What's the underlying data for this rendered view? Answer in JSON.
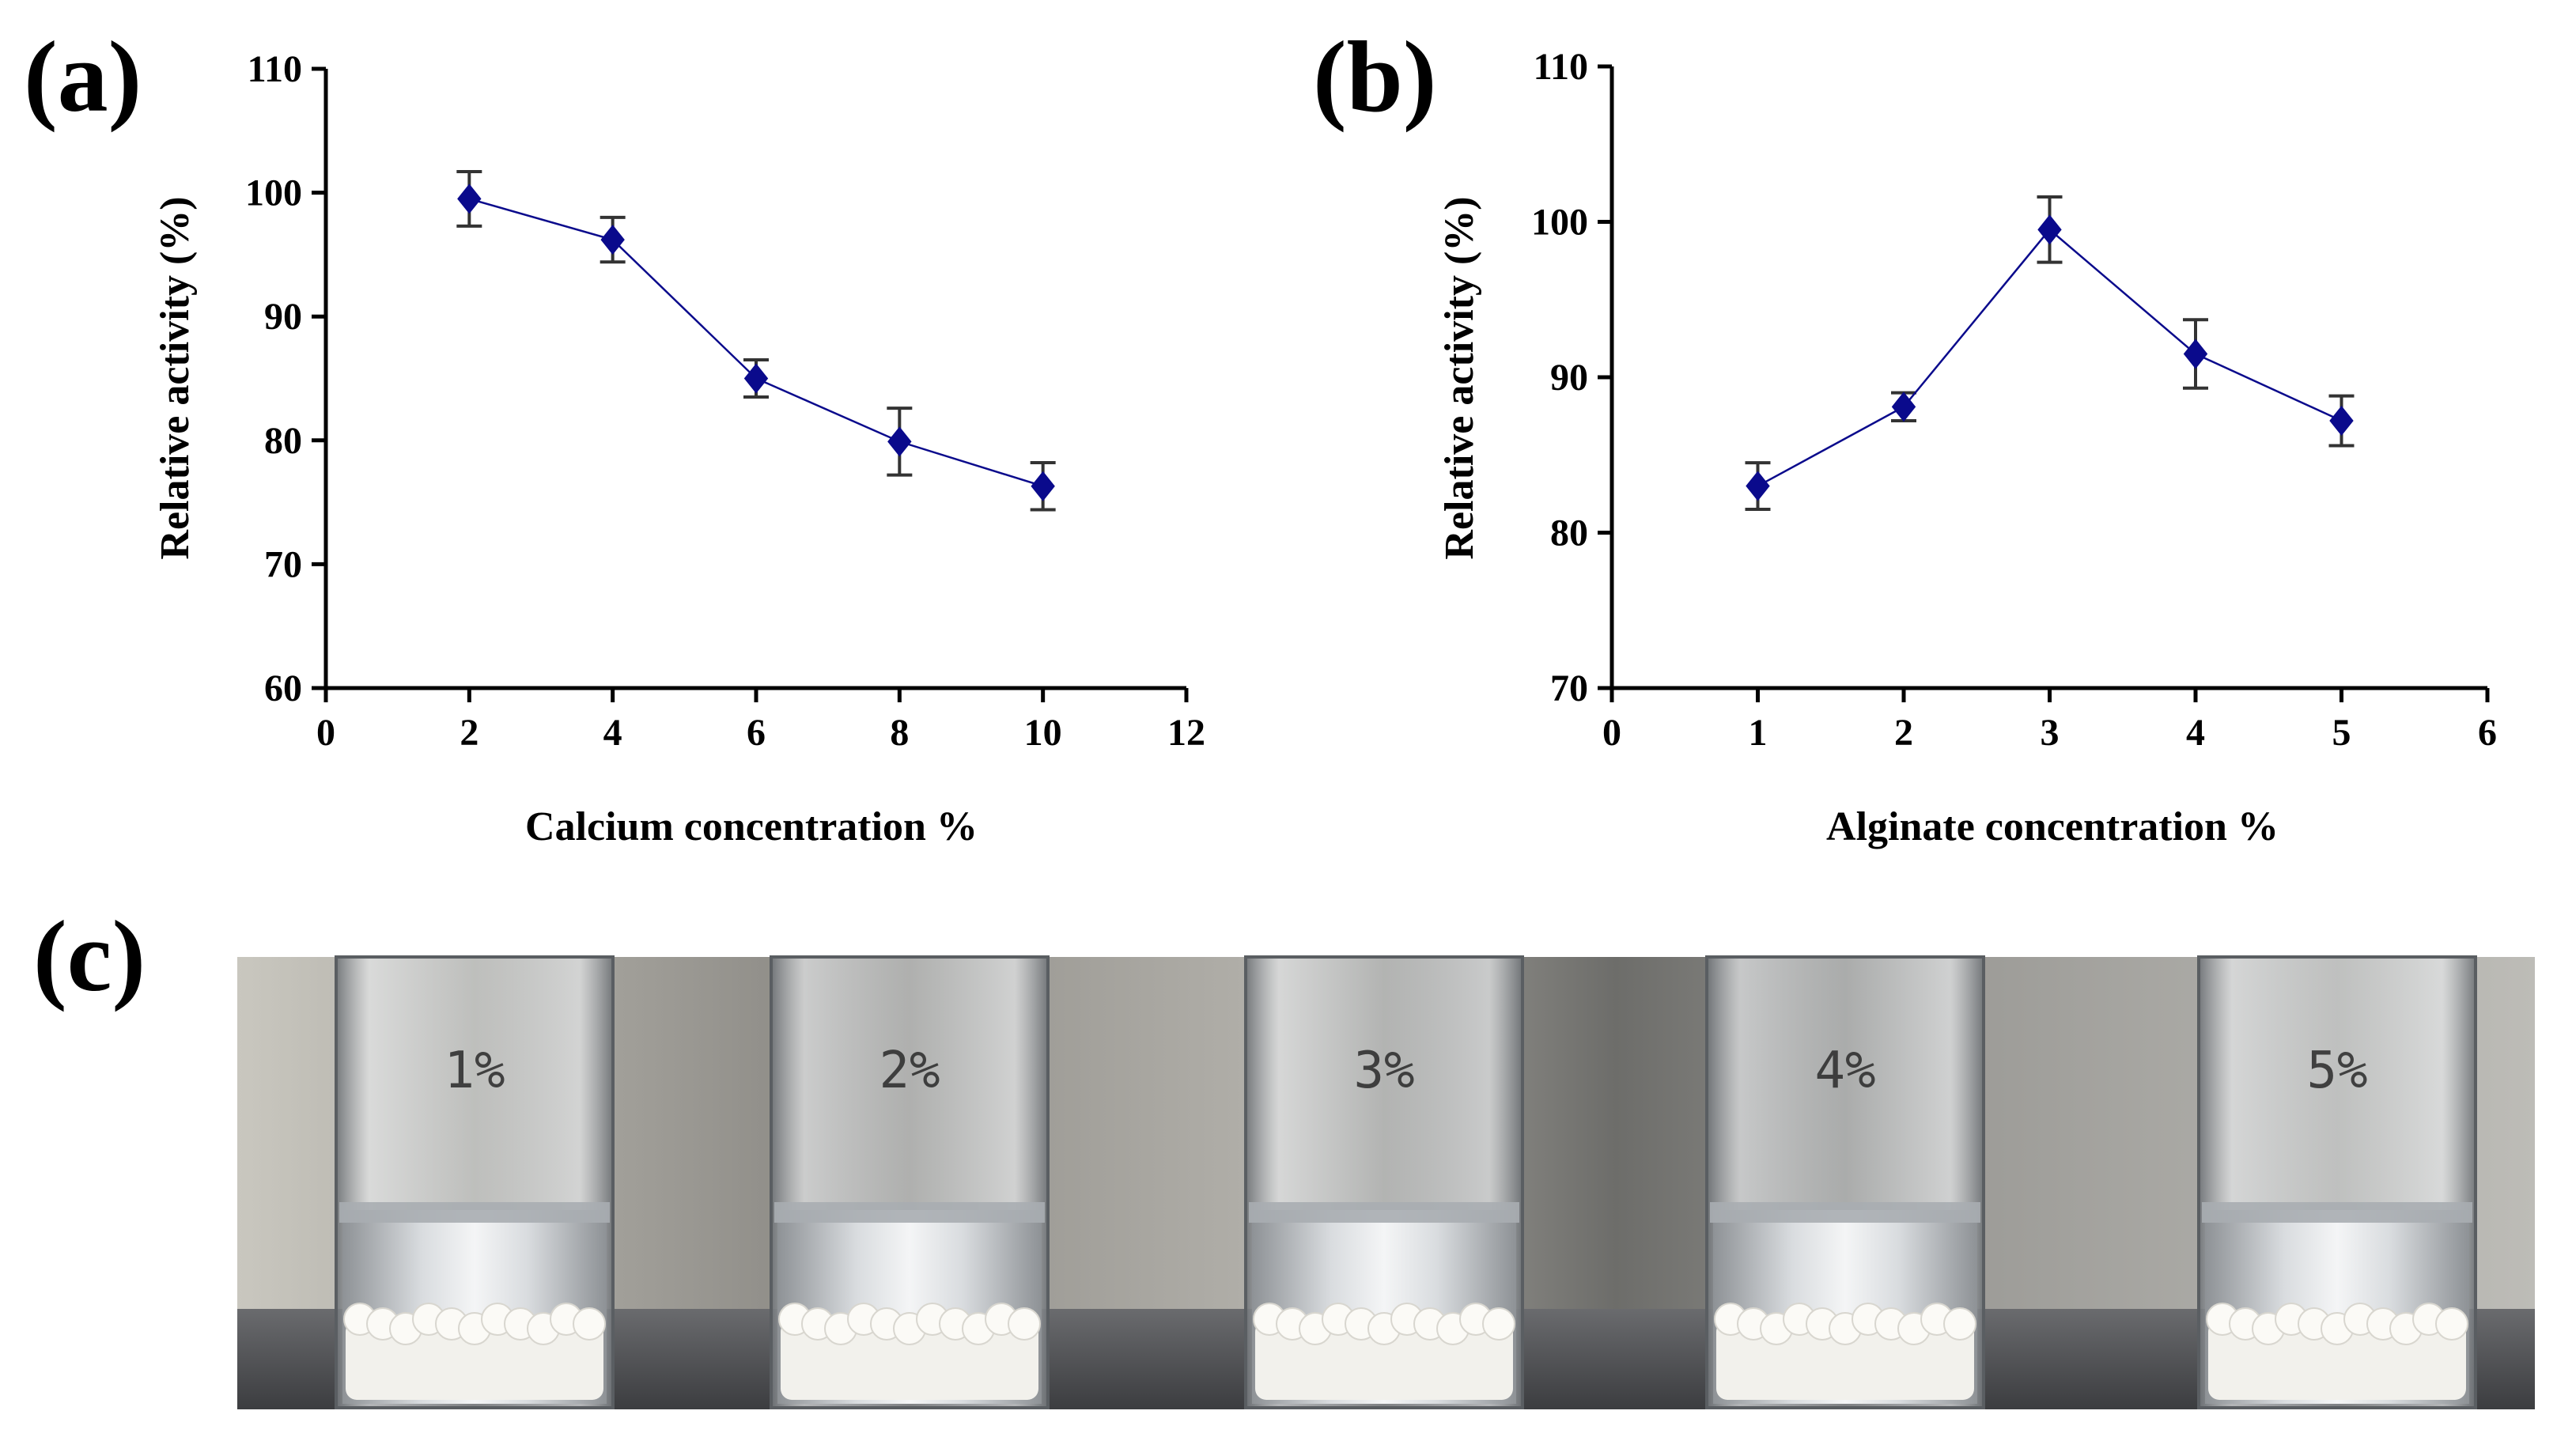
{
  "panels": {
    "a": {
      "label": "(a)"
    },
    "b": {
      "label": "(b)"
    },
    "c": {
      "label": "(c)"
    }
  },
  "colors": {
    "series": "#0a0a8c",
    "errorbar": "#333333",
    "axis": "#000000"
  },
  "chart_data": [
    {
      "panel": "a",
      "type": "line",
      "title": "",
      "xlabel": "Calcium concentration %",
      "ylabel": "Relative activity (%)",
      "xlim": [
        0,
        12
      ],
      "ylim": [
        60,
        110
      ],
      "xticks": [
        0,
        2,
        4,
        6,
        8,
        10,
        12
      ],
      "yticks": [
        60,
        70,
        80,
        90,
        100,
        110
      ],
      "grid": false,
      "marker": "diamond",
      "series": [
        {
          "name": "Calcium",
          "x": [
            2,
            4,
            6,
            8,
            10
          ],
          "y": [
            99.5,
            96.2,
            85.0,
            79.9,
            76.3
          ],
          "err": [
            2.2,
            1.8,
            1.5,
            2.7,
            1.9
          ]
        }
      ]
    },
    {
      "panel": "b",
      "type": "line",
      "title": "",
      "xlabel": "Alginate concentration %",
      "ylabel": "Relative activity (%)",
      "xlim": [
        0,
        6
      ],
      "ylim": [
        70,
        110
      ],
      "xticks": [
        0,
        1,
        2,
        3,
        4,
        5,
        6
      ],
      "yticks": [
        70,
        80,
        90,
        100,
        110
      ],
      "grid": false,
      "marker": "diamond",
      "series": [
        {
          "name": "Alginate",
          "x": [
            1,
            2,
            3,
            4,
            5
          ],
          "y": [
            83.0,
            88.1,
            99.5,
            91.5,
            87.2
          ],
          "err": [
            1.5,
            0.9,
            2.1,
            2.2,
            1.6
          ]
        }
      ]
    }
  ],
  "photo": {
    "vials": [
      {
        "label": "1%"
      },
      {
        "label": "2%"
      },
      {
        "label": "3%"
      },
      {
        "label": "4%"
      },
      {
        "label": "5%"
      }
    ]
  }
}
